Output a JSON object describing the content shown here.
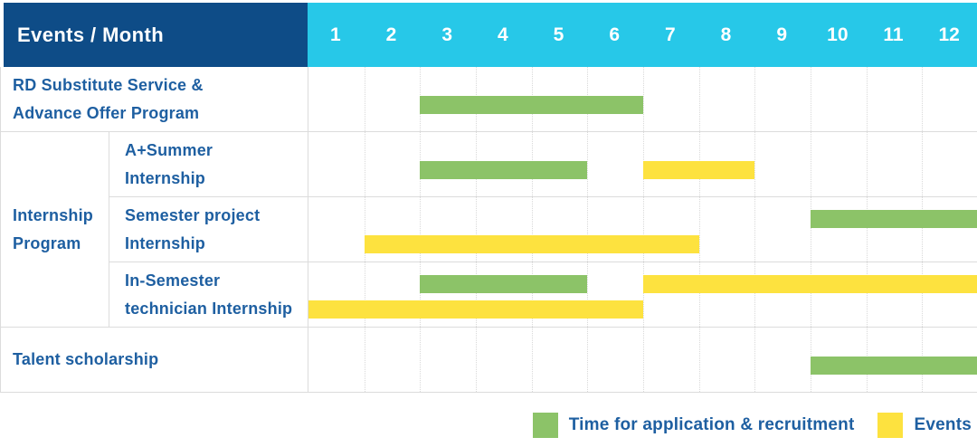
{
  "colors": {
    "navy": "#0e4c87",
    "cyan": "#27c8e8",
    "green": "#8cc368",
    "yellow": "#fde23f",
    "text_blue": "#1e5fa1",
    "row_line": "#dcdcdc",
    "grid_dot": "#d9d9d9"
  },
  "table": {
    "header": {
      "title": "Events / Month",
      "months": [
        "1",
        "2",
        "3",
        "4",
        "5",
        "6",
        "7",
        "8",
        "9",
        "10",
        "11",
        "12"
      ]
    },
    "row_labels": [
      {
        "lines": [
          "RD Substitute Service &",
          "Advance Offer Program"
        ]
      },
      {
        "lines": [
          "A+Summer",
          "Internship"
        ]
      },
      {
        "lines": [
          "Semester project",
          "Internship"
        ]
      },
      {
        "lines": [
          "In-Semester",
          "technician Internship"
        ]
      },
      {
        "lines": [
          "Talent scholarship"
        ]
      }
    ],
    "group_label": {
      "lines": [
        "Internship",
        "Program"
      ]
    }
  },
  "legend": {
    "items": [
      {
        "label": "Time for application & recruitment",
        "color": "#8cc368",
        "type": "application"
      },
      {
        "label": "Events",
        "color": "#fde23f",
        "type": "event"
      }
    ]
  },
  "chart_data": {
    "type": "gantt",
    "title": "Events / Month",
    "x_axis": {
      "unit": "month",
      "ticks": [
        1,
        2,
        3,
        4,
        5,
        6,
        7,
        8,
        9,
        10,
        11,
        12
      ],
      "range": [
        1,
        12
      ]
    },
    "grid": "dotted vertical monthly lines",
    "legend_position": "bottom-right",
    "series_legend": {
      "application": "Time for application & recruitment",
      "event": "Events"
    },
    "rows": [
      {
        "label": "RD Substitute Service & Advance Offer Program",
        "group": null,
        "bars": [
          {
            "type": "application",
            "start": 3,
            "end": 6,
            "lane": "mid"
          }
        ]
      },
      {
        "label": "A+Summer Internship",
        "group": "Internship Program",
        "bars": [
          {
            "type": "application",
            "start": 3,
            "end": 5,
            "lane": "mid"
          },
          {
            "type": "event",
            "start": 7,
            "end": 8,
            "lane": "mid"
          }
        ]
      },
      {
        "label": "Semester project Internship",
        "group": "Internship Program",
        "bars": [
          {
            "type": "application",
            "start": 10,
            "end": 12,
            "lane": "top"
          },
          {
            "type": "event",
            "start": 2,
            "end": 7,
            "lane": "bottom"
          }
        ]
      },
      {
        "label": "In-Semester technician Internship",
        "group": "Internship Program",
        "bars": [
          {
            "type": "application",
            "start": 3,
            "end": 5,
            "lane": "top"
          },
          {
            "type": "event",
            "start": 7,
            "end": 12,
            "lane": "top"
          },
          {
            "type": "event",
            "start": 1,
            "end": 6,
            "lane": "bottom"
          }
        ]
      },
      {
        "label": "Talent scholarship",
        "group": null,
        "bars": [
          {
            "type": "application",
            "start": 10,
            "end": 12,
            "lane": "mid"
          }
        ]
      }
    ]
  }
}
